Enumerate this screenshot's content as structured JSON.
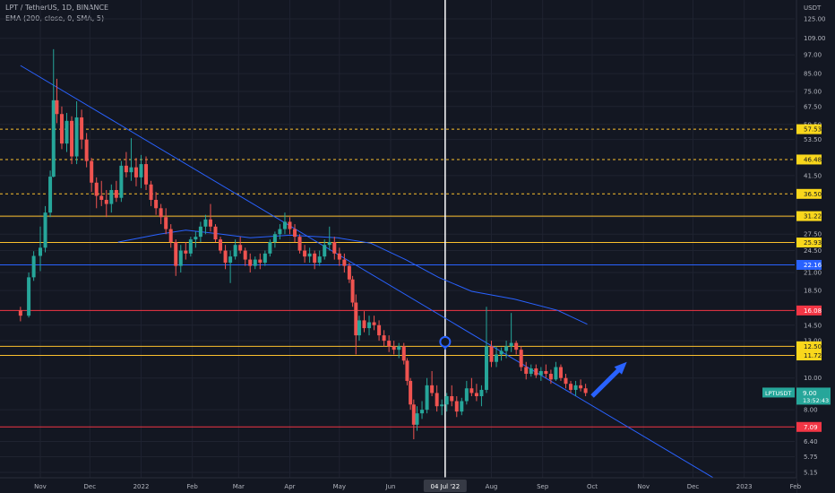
{
  "header": {
    "symbol_line": "LPT / TetherUS, 1D, BINANCE",
    "indicator_line": "EMA (200, close, 0, SMA, 5)"
  },
  "chart_data": {
    "type": "candlestick",
    "symbol": "LPTUSDT",
    "currency": "USDT",
    "scale": "log",
    "ylim": [
      4.9,
      137
    ],
    "x_tick_labels": [
      "Nov",
      "Dec",
      "2022",
      "Feb",
      "Mar",
      "Apr",
      "May",
      "Jun",
      "04 Jul '22",
      "Aug",
      "Sep",
      "Oct",
      "Nov",
      "Dec",
      "2023",
      "Feb"
    ],
    "x_tick_dates": [
      "2021-11-01",
      "2021-12-01",
      "2022-01-01",
      "2022-02-01",
      "2022-03-01",
      "2022-04-01",
      "2022-05-01",
      "2022-06-01",
      "2022-07-04",
      "2022-08-01",
      "2022-09-01",
      "2022-10-01",
      "2022-11-01",
      "2022-12-01",
      "2023-01-01",
      "2023-02-01"
    ],
    "y_tick_labels": [
      "125.00",
      "109.00",
      "97.00",
      "85.00",
      "75.00",
      "67.50",
      "59.50",
      "53.50",
      "41.50",
      "31.00",
      "27.50",
      "24.50",
      "21.00",
      "18.50",
      "14.50",
      "13.00",
      "10.00",
      "8.00",
      "6.40",
      "5.75",
      "5.15"
    ],
    "y_tick_values": [
      125,
      109,
      97,
      85,
      75,
      67.5,
      59.5,
      53.5,
      41.5,
      31,
      27.5,
      24.5,
      21,
      18.5,
      14.5,
      13,
      10,
      8,
      6.4,
      5.75,
      5.15
    ],
    "horizontal_levels": [
      {
        "value": 57.53,
        "label": "57.53",
        "color": "#fbc02d",
        "style": "dashed"
      },
      {
        "value": 46.48,
        "label": "46.48",
        "color": "#fbc02d",
        "style": "dashed"
      },
      {
        "value": 36.5,
        "label": "36.50",
        "color": "#fbc02d",
        "style": "dashed"
      },
      {
        "value": 31.22,
        "label": "31.22",
        "color": "#fbc02d",
        "style": "solid"
      },
      {
        "value": 25.93,
        "label": "25.93",
        "color": "#fbc02d",
        "style": "solid"
      },
      {
        "value": 22.16,
        "label": "22.16",
        "color": "#2962ff",
        "style": "solid"
      },
      {
        "value": 16.08,
        "label": "16.08",
        "color": "#f23645",
        "style": "solid"
      },
      {
        "value": 12.5,
        "label": "12.50",
        "color": "#fbc02d",
        "style": "solid"
      },
      {
        "value": 11.72,
        "label": "11.72",
        "color": "#fbc02d",
        "style": "solid"
      },
      {
        "value": 7.09,
        "label": "7.09",
        "color": "#f23645",
        "style": "solid"
      }
    ],
    "last_price": {
      "symbol": "LPTUSDT",
      "value": "9.00",
      "countdown": "13:52:43",
      "price": 9.0
    },
    "crosshair_date": "2022-07-04",
    "candles": [
      [
        "2021-10-20",
        16.1,
        16.5,
        14.9,
        15.5
      ],
      [
        "2021-10-25",
        15.5,
        21.0,
        15.3,
        20.3
      ],
      [
        "2021-10-28",
        20.3,
        24.4,
        19.8,
        23.6
      ],
      [
        "2021-11-01",
        23.6,
        29.0,
        21.2,
        25.0
      ],
      [
        "2021-11-04",
        25.0,
        33.5,
        24.2,
        32.0
      ],
      [
        "2021-11-07",
        32.0,
        43.0,
        31.0,
        41.2
      ],
      [
        "2021-11-09",
        41.2,
        101.0,
        41.0,
        70.5
      ],
      [
        "2021-11-11",
        70.5,
        82.0,
        60.0,
        64.0
      ],
      [
        "2021-11-14",
        64.0,
        67.5,
        50.0,
        52.0
      ],
      [
        "2021-11-17",
        52.0,
        64.5,
        49.0,
        61.0
      ],
      [
        "2021-11-20",
        61.0,
        63.0,
        45.0,
        47.5
      ],
      [
        "2021-11-23",
        47.5,
        70.0,
        45.0,
        62.5
      ],
      [
        "2021-11-26",
        62.5,
        66.0,
        50.0,
        53.5
      ],
      [
        "2021-11-29",
        53.5,
        56.0,
        44.0,
        46.0
      ],
      [
        "2021-12-02",
        46.0,
        47.0,
        37.0,
        39.5
      ],
      [
        "2021-12-05",
        39.5,
        41.0,
        33.0,
        36.0
      ],
      [
        "2021-12-08",
        36.0,
        40.0,
        33.5,
        35.0
      ],
      [
        "2021-12-11",
        35.0,
        37.5,
        31.0,
        34.0
      ],
      [
        "2021-12-14",
        34.0,
        39.0,
        32.0,
        37.5
      ],
      [
        "2021-12-17",
        37.5,
        40.0,
        34.5,
        35.5
      ],
      [
        "2021-12-20",
        35.5,
        46.0,
        34.5,
        44.5
      ],
      [
        "2021-12-23",
        44.5,
        49.0,
        41.0,
        42.5
      ],
      [
        "2021-12-26",
        42.5,
        54.0,
        40.0,
        44.0
      ],
      [
        "2021-12-29",
        44.0,
        47.0,
        38.5,
        41.0
      ],
      [
        "2022-01-01",
        41.0,
        48.0,
        38.0,
        45.0
      ],
      [
        "2022-01-04",
        45.0,
        47.5,
        37.5,
        39.0
      ],
      [
        "2022-01-07",
        39.0,
        40.0,
        33.5,
        35.0
      ],
      [
        "2022-01-10",
        35.0,
        37.0,
        31.5,
        33.0
      ],
      [
        "2022-01-13",
        33.0,
        34.0,
        29.5,
        31.0
      ],
      [
        "2022-01-16",
        31.0,
        33.0,
        27.5,
        28.5
      ],
      [
        "2022-01-19",
        28.5,
        29.5,
        25.0,
        26.0
      ],
      [
        "2022-01-22",
        26.0,
        26.5,
        20.5,
        22.0
      ],
      [
        "2022-01-25",
        22.0,
        25.5,
        21.0,
        24.5
      ],
      [
        "2022-01-28",
        24.5,
        26.0,
        23.0,
        24.0
      ],
      [
        "2022-01-31",
        24.0,
        27.0,
        23.5,
        26.5
      ],
      [
        "2022-02-03",
        26.5,
        28.0,
        25.0,
        27.0
      ],
      [
        "2022-02-06",
        27.0,
        30.0,
        26.0,
        29.0
      ],
      [
        "2022-02-09",
        29.0,
        31.5,
        27.5,
        30.5
      ],
      [
        "2022-02-12",
        30.5,
        34.0,
        28.0,
        29.0
      ],
      [
        "2022-02-15",
        29.0,
        29.5,
        26.0,
        26.5
      ],
      [
        "2022-02-18",
        26.5,
        27.0,
        24.0,
        24.5
      ],
      [
        "2022-02-21",
        24.5,
        25.5,
        21.5,
        22.5
      ],
      [
        "2022-02-24",
        22.5,
        24.5,
        19.5,
        23.5
      ],
      [
        "2022-02-27",
        23.5,
        26.5,
        23.0,
        25.5
      ],
      [
        "2022-03-02",
        25.5,
        27.0,
        24.0,
        24.5
      ],
      [
        "2022-03-05",
        24.5,
        25.0,
        22.0,
        23.0
      ],
      [
        "2022-03-08",
        23.0,
        24.0,
        21.0,
        22.0
      ],
      [
        "2022-03-11",
        22.0,
        23.5,
        21.5,
        23.0
      ],
      [
        "2022-03-14",
        23.0,
        24.0,
        21.5,
        22.5
      ],
      [
        "2022-03-17",
        22.5,
        24.5,
        22.0,
        24.0
      ],
      [
        "2022-03-20",
        24.0,
        26.5,
        23.5,
        26.0
      ],
      [
        "2022-03-23",
        26.0,
        28.0,
        25.0,
        27.5
      ],
      [
        "2022-03-26",
        27.5,
        29.5,
        26.5,
        28.5
      ],
      [
        "2022-03-29",
        28.5,
        32.0,
        27.5,
        30.0
      ],
      [
        "2022-04-01",
        30.0,
        31.0,
        27.5,
        28.5
      ],
      [
        "2022-04-04",
        28.5,
        29.5,
        26.0,
        27.0
      ],
      [
        "2022-04-07",
        27.0,
        27.5,
        24.0,
        24.5
      ],
      [
        "2022-04-10",
        24.5,
        25.5,
        22.5,
        23.5
      ],
      [
        "2022-04-13",
        23.5,
        25.0,
        22.5,
        24.0
      ],
      [
        "2022-04-16",
        24.0,
        24.5,
        21.5,
        22.5
      ],
      [
        "2022-04-19",
        22.5,
        24.5,
        22.0,
        23.5
      ],
      [
        "2022-04-22",
        23.5,
        26.5,
        23.0,
        25.5
      ],
      [
        "2022-04-25",
        25.5,
        29.0,
        24.5,
        26.0
      ],
      [
        "2022-04-28",
        26.0,
        27.0,
        23.0,
        24.0
      ],
      [
        "2022-05-01",
        24.0,
        25.0,
        22.0,
        23.0
      ],
      [
        "2022-05-04",
        23.0,
        24.0,
        21.0,
        22.0
      ],
      [
        "2022-05-07",
        22.0,
        22.5,
        19.5,
        20.0
      ],
      [
        "2022-05-09",
        20.0,
        20.5,
        16.5,
        17.0
      ],
      [
        "2022-05-11",
        17.0,
        18.0,
        11.8,
        13.5
      ],
      [
        "2022-05-13",
        13.5,
        15.5,
        13.0,
        15.0
      ],
      [
        "2022-05-16",
        15.0,
        16.0,
        13.8,
        14.2
      ],
      [
        "2022-05-19",
        14.2,
        15.5,
        13.5,
        14.8
      ],
      [
        "2022-05-22",
        14.8,
        15.5,
        14.0,
        14.5
      ],
      [
        "2022-05-25",
        14.5,
        15.0,
        13.0,
        13.5
      ],
      [
        "2022-05-28",
        13.5,
        14.0,
        12.5,
        13.0
      ],
      [
        "2022-05-31",
        13.0,
        13.5,
        12.0,
        12.5
      ],
      [
        "2022-06-03",
        12.5,
        13.0,
        11.8,
        12.2
      ],
      [
        "2022-06-06",
        12.2,
        12.8,
        11.5,
        12.5
      ],
      [
        "2022-06-09",
        12.5,
        12.8,
        11.0,
        11.3
      ],
      [
        "2022-06-11",
        11.3,
        11.5,
        9.5,
        9.8
      ],
      [
        "2022-06-13",
        9.8,
        10.0,
        8.0,
        8.3
      ],
      [
        "2022-06-15",
        8.3,
        8.6,
        6.5,
        7.2
      ],
      [
        "2022-06-17",
        7.2,
        8.2,
        6.9,
        7.8
      ],
      [
        "2022-06-20",
        7.8,
        8.5,
        7.5,
        8.0
      ],
      [
        "2022-06-23",
        8.0,
        10.0,
        7.8,
        9.5
      ],
      [
        "2022-06-26",
        9.5,
        10.5,
        8.8,
        9.0
      ],
      [
        "2022-06-29",
        9.0,
        9.5,
        7.9,
        8.2
      ],
      [
        "2022-07-02",
        8.2,
        8.6,
        7.7,
        8.3
      ],
      [
        "2022-07-05",
        8.3,
        9.0,
        7.9,
        8.8
      ],
      [
        "2022-07-08",
        8.8,
        9.5,
        8.2,
        8.5
      ],
      [
        "2022-07-11",
        8.5,
        8.8,
        7.6,
        7.9
      ],
      [
        "2022-07-14",
        7.9,
        8.7,
        7.7,
        8.5
      ],
      [
        "2022-07-17",
        8.5,
        9.8,
        8.3,
        9.3
      ],
      [
        "2022-07-20",
        9.3,
        10.0,
        8.8,
        9.0
      ],
      [
        "2022-07-23",
        9.0,
        9.6,
        8.5,
        8.8
      ],
      [
        "2022-07-26",
        8.8,
        9.5,
        8.2,
        9.2
      ],
      [
        "2022-07-29",
        9.2,
        16.5,
        9.0,
        12.5
      ],
      [
        "2022-08-01",
        12.5,
        13.0,
        10.8,
        11.2
      ],
      [
        "2022-08-04",
        11.2,
        12.5,
        10.8,
        11.8
      ],
      [
        "2022-08-07",
        11.8,
        12.4,
        11.3,
        12.1
      ],
      [
        "2022-08-10",
        12.1,
        13.0,
        11.5,
        12.5
      ],
      [
        "2022-08-13",
        12.5,
        15.8,
        12.0,
        12.8
      ],
      [
        "2022-08-16",
        12.8,
        13.0,
        11.8,
        12.2
      ],
      [
        "2022-08-19",
        12.2,
        12.5,
        10.5,
        10.8
      ],
      [
        "2022-08-22",
        10.8,
        11.2,
        9.9,
        10.3
      ],
      [
        "2022-08-25",
        10.3,
        11.0,
        10.1,
        10.7
      ],
      [
        "2022-08-28",
        10.7,
        11.0,
        10.0,
        10.2
      ],
      [
        "2022-08-31",
        10.2,
        10.8,
        9.8,
        10.5
      ],
      [
        "2022-09-03",
        10.5,
        11.0,
        10.0,
        10.3
      ],
      [
        "2022-09-06",
        10.3,
        10.6,
        9.6,
        9.9
      ],
      [
        "2022-09-09",
        9.9,
        11.2,
        9.8,
        10.8
      ],
      [
        "2022-09-12",
        10.8,
        11.0,
        9.8,
        10.0
      ],
      [
        "2022-09-15",
        10.0,
        10.3,
        9.3,
        9.6
      ],
      [
        "2022-09-18",
        9.6,
        9.8,
        9.0,
        9.2
      ],
      [
        "2022-09-21",
        9.2,
        9.8,
        8.8,
        9.5
      ],
      [
        "2022-09-24",
        9.5,
        9.9,
        9.1,
        9.3
      ],
      [
        "2022-09-27",
        9.3,
        9.6,
        8.8,
        9.0
      ]
    ],
    "series": [
      {
        "name": "EMA (200, close, 0, SMA, 5)",
        "color": "#2962ff",
        "points": [
          [
            "2021-12-18",
            26.0
          ],
          [
            "2022-01-12",
            27.5
          ],
          [
            "2022-01-28",
            28.3
          ],
          [
            "2022-02-16",
            27.6
          ],
          [
            "2022-03-08",
            26.8
          ],
          [
            "2022-04-01",
            27.3
          ],
          [
            "2022-04-30",
            26.8
          ],
          [
            "2022-05-20",
            25.8
          ],
          [
            "2022-06-10",
            23.0
          ],
          [
            "2022-06-30",
            20.3
          ],
          [
            "2022-07-20",
            18.4
          ],
          [
            "2022-08-15",
            17.4
          ],
          [
            "2022-09-10",
            16.1
          ],
          [
            "2022-09-28",
            14.6
          ]
        ]
      }
    ],
    "trendline": {
      "color": "#2962ff",
      "points": [
        [
          "2021-10-20",
          90
        ],
        [
          "2022-12-15",
          4.9
        ]
      ]
    },
    "annotations": [
      {
        "type": "arrow",
        "color": "#2962ff",
        "from": [
          "2022-10-01",
          8.8
        ],
        "to": [
          "2022-10-22",
          11.2
        ]
      },
      {
        "type": "location-marker",
        "color": "#2962ff",
        "at": [
          "2022-07-04",
          12.9
        ]
      }
    ],
    "grid": true,
    "colors": {
      "up": "#26a69a",
      "down": "#ef5350",
      "background": "#131722",
      "crosshair": "#ffffff",
      "axis_text": "#b2b5be"
    }
  }
}
